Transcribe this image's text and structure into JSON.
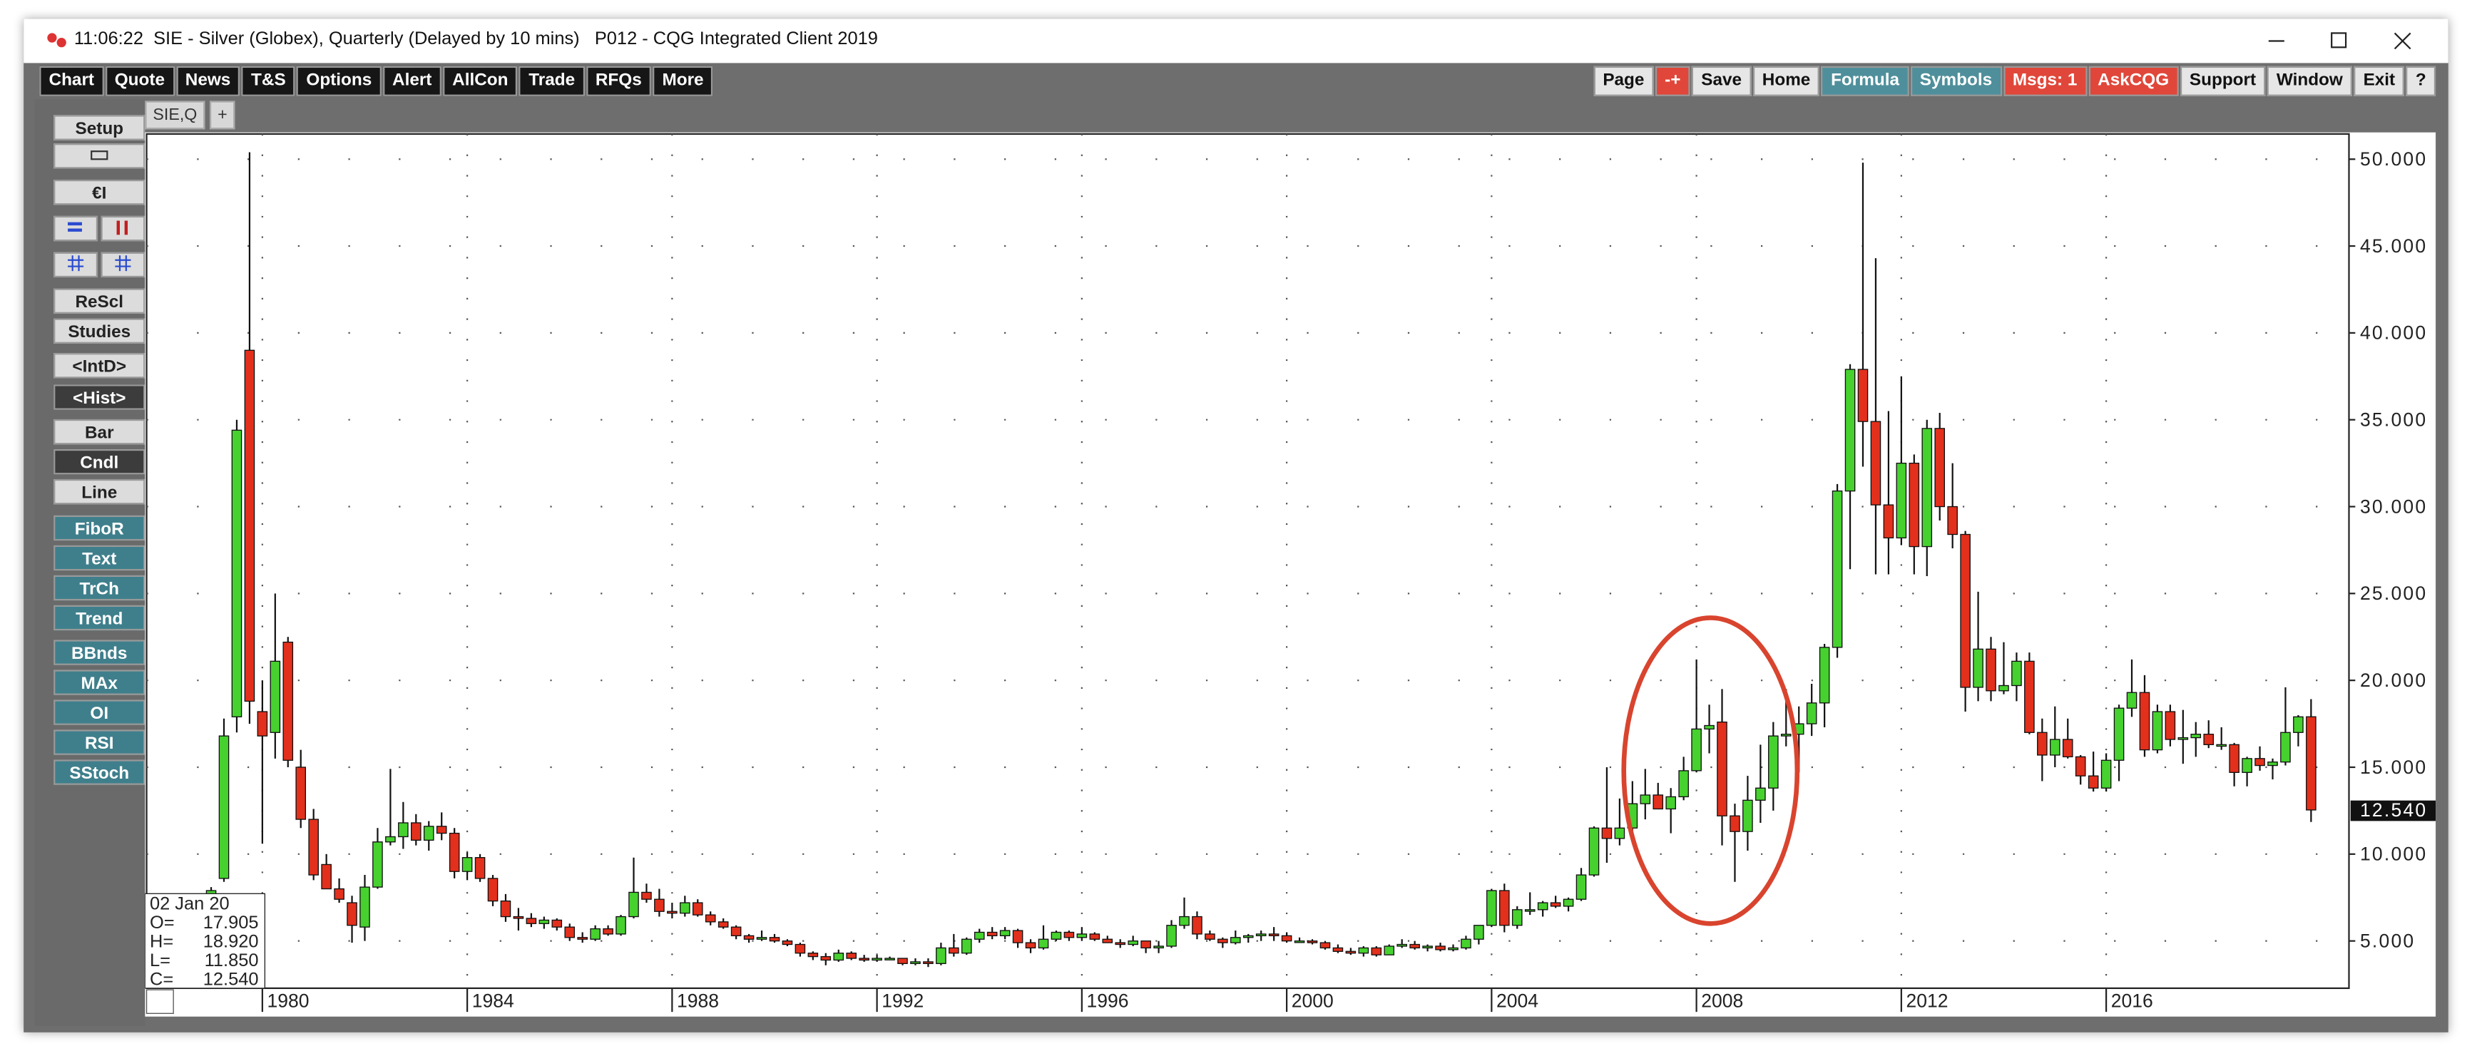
{
  "window": {
    "time": "11:06:22",
    "title": "SIE - Silver (Globex), Quarterly (Delayed by 10 mins)   P012 - CQG Integrated Client 2019"
  },
  "toolbar": {
    "left": [
      "Chart",
      "Quote",
      "News",
      "T&S",
      "Options",
      "Alert",
      "AllCon",
      "Trade",
      "RFQs",
      "More"
    ],
    "right": [
      {
        "label": "Page",
        "color": "#e6e6e6"
      },
      {
        "label": "-+",
        "color": "#e0473a"
      },
      {
        "label": "Save",
        "color": "#e6e6e6"
      },
      {
        "label": "Home",
        "color": "#e6e6e6"
      },
      {
        "label": "Formula",
        "color": "#4f8f9b"
      },
      {
        "label": "Symbols",
        "color": "#4f8f9b"
      },
      {
        "label": "Msgs: 1",
        "color": "#e0473a"
      },
      {
        "label": "AskCQG",
        "color": "#e0473a"
      },
      {
        "label": "Support",
        "color": "#e6e6e6"
      },
      {
        "label": "Window",
        "color": "#e6e6e6"
      },
      {
        "label": "Exit",
        "color": "#e6e6e6"
      },
      {
        "label": "?",
        "color": "#e6e6e6"
      }
    ]
  },
  "sidebar": [
    {
      "label": "Setup",
      "color": "#dcdcdc"
    },
    {
      "label": "€I",
      "color": "#dcdcdc"
    },
    {
      "label": "ReScl",
      "color": "#dcdcdc"
    },
    {
      "label": "Studies",
      "color": "#dcdcdc"
    },
    {
      "label": "<IntD>",
      "color": "#dcdcdc"
    },
    {
      "label": "<Hist>",
      "color": "#3c3c3c"
    },
    {
      "label": "Bar",
      "color": "#dcdcdc"
    },
    {
      "label": "Cndl",
      "color": "#3c3c3c"
    },
    {
      "label": "Line",
      "color": "#dcdcdc"
    },
    {
      "label": "FiboR",
      "color": "#3f7f8c"
    },
    {
      "label": "Text",
      "color": "#3f7f8c"
    },
    {
      "label": "TrCh",
      "color": "#3f7f8c"
    },
    {
      "label": "Trend",
      "color": "#3f7f8c"
    },
    {
      "label": "BBnds",
      "color": "#3f7f8c"
    },
    {
      "label": "MAx",
      "color": "#3f7f8c"
    },
    {
      "label": "OI",
      "color": "#3f7f8c"
    },
    {
      "label": "RSI",
      "color": "#3f7f8c"
    },
    {
      "label": "SStoch",
      "color": "#3f7f8c"
    }
  ],
  "tabs": [
    "SIE,Q",
    "+"
  ],
  "info_box": {
    "date": "02 Jan 20",
    "rows": [
      {
        "label": "O=",
        "value": "17.905"
      },
      {
        "label": "H=",
        "value": "18.920"
      },
      {
        "label": "L=",
        "value": "11.850"
      },
      {
        "label": "C=",
        "value": "12.540"
      }
    ]
  },
  "chart_data": {
    "type": "candlestick",
    "x": [
      1979,
      1979.25,
      1979.5,
      1979.75,
      1980,
      1980.25,
      1980.5,
      1980.75,
      1981,
      1981.25,
      1981.5,
      1981.75,
      1982,
      1982.25,
      1982.5,
      1982.75,
      1983,
      1983.25,
      1983.5,
      1983.75,
      1984,
      1984.25,
      1984.5,
      1984.75,
      1985,
      1985.25,
      1985.5,
      1985.75,
      1986,
      1986.25,
      1986.5,
      1986.75,
      1987,
      1987.25,
      1987.5,
      1987.75,
      1988,
      1988.25,
      1988.5,
      1988.75,
      1989,
      1989.25,
      1989.5,
      1989.75,
      1990,
      1990.25,
      1990.5,
      1990.75,
      1991,
      1991.25,
      1991.5,
      1991.75,
      1992,
      1992.25,
      1992.5,
      1992.75,
      1993,
      1993.25,
      1993.5,
      1993.75,
      1994,
      1994.25,
      1994.5,
      1994.75,
      1995,
      1995.25,
      1995.5,
      1995.75,
      1996,
      1996.25,
      1996.5,
      1996.75,
      1997,
      1997.25,
      1997.5,
      1997.75,
      1998,
      1998.25,
      1998.5,
      1998.75,
      1999,
      1999.25,
      1999.5,
      1999.75,
      2000,
      2000.25,
      2000.5,
      2000.75,
      2001,
      2001.25,
      2001.5,
      2001.75,
      2002,
      2002.25,
      2002.5,
      2002.75,
      2003,
      2003.25,
      2003.5,
      2003.75,
      2004,
      2004.25,
      2004.5,
      2004.75,
      2005,
      2005.25,
      2005.5,
      2005.75,
      2006,
      2006.25,
      2006.5,
      2006.75,
      2007,
      2007.25,
      2007.5,
      2007.75,
      2008,
      2008.25,
      2008.5,
      2008.75,
      2009,
      2009.25,
      2009.5,
      2009.75,
      2010,
      2010.25,
      2010.5,
      2010.75,
      2011,
      2011.25,
      2011.5,
      2011.75,
      2012,
      2012.25,
      2012.5,
      2012.75,
      2013,
      2013.25,
      2013.5,
      2013.75,
      2014,
      2014.25,
      2014.5,
      2014.75,
      2015,
      2015.25,
      2015.5,
      2015.75,
      2016,
      2016.25,
      2016.5,
      2016.75,
      2017,
      2017.25,
      2017.5,
      2017.75,
      2018,
      2018.25,
      2018.5,
      2018.75,
      2019,
      2019.25,
      2019.5,
      2019.75,
      2020
    ],
    "open": [
      6.0,
      8.6,
      17.9,
      39.0,
      18.2,
      17.0,
      22.2,
      15.0,
      12.0,
      9.4,
      8.0,
      7.2,
      5.8,
      8.1,
      10.7,
      11.0,
      11.8,
      10.8,
      11.6,
      11.2,
      9.0,
      9.8,
      8.6,
      7.3,
      6.4,
      6.3,
      6.0,
      6.2,
      5.8,
      5.2,
      5.1,
      5.7,
      5.4,
      6.4,
      7.8,
      7.4,
      6.7,
      6.6,
      7.2,
      6.5,
      6.1,
      5.8,
      5.3,
      5.1,
      5.2,
      5.0,
      4.8,
      4.3,
      4.1,
      3.9,
      4.3,
      4.0,
      3.9,
      4.0,
      4.0,
      3.7,
      3.8,
      3.7,
      4.6,
      4.3,
      5.1,
      5.5,
      5.3,
      5.6,
      4.9,
      4.6,
      5.1,
      5.5,
      5.2,
      5.4,
      5.1,
      4.9,
      4.8,
      5.0,
      4.6,
      4.7,
      5.9,
      6.4,
      5.4,
      5.1,
      4.9,
      5.2,
      5.3,
      5.4,
      5.3,
      5.0,
      5.0,
      4.9,
      4.6,
      4.4,
      4.3,
      4.6,
      4.2,
      4.7,
      4.8,
      4.6,
      4.7,
      4.5,
      4.6,
      5.1,
      5.9,
      7.9,
      5.9,
      6.8,
      6.8,
      7.2,
      7.0,
      7.4,
      8.8,
      11.5,
      10.9,
      11.5,
      12.9,
      13.4,
      12.6,
      13.3,
      14.8,
      17.2,
      17.6,
      12.2,
      11.3,
      13.1,
      13.8,
      16.8,
      16.9,
      17.5,
      18.7,
      21.9,
      30.9,
      37.9,
      34.9,
      30.1,
      28.2,
      32.5,
      27.7,
      34.5,
      30.0,
      28.4,
      19.6,
      21.8,
      19.4,
      19.7,
      21.1,
      17.0,
      15.7,
      16.6,
      15.6,
      14.5,
      13.8,
      15.4,
      18.4,
      19.3,
      16.0,
      18.2,
      16.6,
      16.7,
      16.9,
      16.3,
      16.3,
      14.7,
      15.5,
      15.1,
      15.3,
      17.0,
      17.905
    ],
    "high": [
      8.1,
      17.8,
      35.0,
      50.4,
      20.0,
      25.0,
      22.5,
      16.0,
      12.6,
      10.0,
      8.6,
      7.6,
      8.8,
      11.5,
      14.9,
      13.0,
      12.3,
      11.9,
      12.4,
      11.5,
      10.1,
      10.0,
      8.8,
      7.7,
      6.9,
      6.6,
      6.4,
      6.3,
      6.0,
      5.5,
      5.9,
      5.9,
      6.5,
      9.8,
      8.3,
      8.0,
      7.2,
      7.6,
      7.4,
      6.7,
      6.3,
      5.9,
      5.4,
      5.6,
      5.4,
      5.1,
      4.9,
      4.4,
      4.3,
      4.5,
      4.4,
      4.2,
      4.2,
      4.1,
      4.0,
      4.0,
      4.0,
      4.9,
      5.4,
      5.2,
      5.7,
      5.8,
      5.8,
      5.7,
      5.1,
      5.9,
      5.6,
      5.6,
      5.8,
      5.5,
      5.3,
      5.1,
      5.3,
      5.0,
      5.0,
      6.2,
      7.5,
      6.7,
      5.6,
      5.2,
      5.6,
      5.4,
      5.6,
      5.8,
      5.5,
      5.2,
      5.1,
      5.0,
      4.8,
      4.6,
      4.7,
      4.7,
      4.8,
      5.1,
      5.0,
      4.8,
      4.9,
      4.8,
      5.3,
      5.9,
      8.0,
      8.3,
      7.0,
      7.8,
      7.3,
      7.6,
      7.5,
      9.2,
      11.6,
      15.0,
      13.2,
      14.2,
      14.9,
      14.1,
      13.8,
      15.6,
      21.2,
      18.6,
      19.5,
      12.9,
      14.5,
      16.3,
      17.6,
      19.5,
      18.5,
      19.8,
      22.1,
      31.3,
      38.2,
      49.8,
      44.3,
      35.5,
      37.5,
      33.0,
      35.0,
      35.4,
      32.5,
      28.6,
      25.1,
      22.5,
      22.2,
      21.6,
      21.6,
      17.8,
      18.5,
      17.8,
      15.7,
      15.9,
      15.8,
      18.6,
      21.2,
      20.3,
      18.6,
      18.6,
      18.3,
      17.6,
      17.7,
      17.3,
      16.4,
      15.6,
      16.2,
      15.5,
      19.6,
      18.0,
      18.92
    ],
    "low": [
      5.9,
      8.4,
      17.0,
      17.5,
      10.6,
      15.5,
      15.0,
      11.5,
      8.5,
      8.3,
      7.2,
      4.9,
      5.0,
      8.0,
      10.5,
      10.3,
      10.5,
      10.2,
      10.8,
      8.6,
      8.5,
      8.4,
      7.0,
      6.1,
      5.6,
      5.8,
      5.7,
      5.6,
      5.0,
      4.9,
      5.0,
      5.3,
      5.3,
      6.3,
      7.2,
      6.4,
      6.3,
      6.4,
      6.4,
      5.9,
      5.7,
      5.1,
      4.9,
      5.0,
      4.9,
      4.7,
      4.1,
      3.9,
      3.6,
      3.8,
      3.9,
      3.8,
      3.8,
      3.9,
      3.6,
      3.6,
      3.5,
      3.6,
      4.1,
      4.2,
      4.9,
      5.1,
      5.1,
      4.6,
      4.3,
      4.5,
      5.0,
      5.0,
      5.0,
      5.0,
      4.9,
      4.6,
      4.7,
      4.3,
      4.3,
      4.6,
      5.7,
      5.1,
      5.0,
      4.6,
      4.8,
      4.9,
      5.0,
      5.0,
      4.9,
      4.9,
      4.8,
      4.5,
      4.3,
      4.2,
      4.1,
      4.1,
      4.2,
      4.6,
      4.5,
      4.4,
      4.4,
      4.4,
      4.5,
      4.8,
      5.8,
      5.5,
      5.7,
      6.5,
      6.4,
      6.9,
      6.7,
      7.3,
      8.7,
      9.5,
      10.5,
      10.9,
      12.0,
      12.6,
      11.2,
      13.1,
      14.7,
      15.8,
      10.5,
      8.4,
      10.2,
      11.8,
      12.5,
      16.2,
      14.7,
      16.8,
      17.3,
      21.3,
      26.4,
      32.3,
      26.1,
      26.1,
      27.8,
      26.1,
      26.0,
      29.2,
      27.6,
      18.2,
      18.8,
      18.8,
      19.2,
      18.8,
      16.9,
      14.2,
      15.0,
      15.5,
      14.0,
      13.6,
      13.6,
      14.2,
      17.9,
      15.6,
      15.8,
      16.2,
      15.2,
      15.6,
      16.1,
      16.0,
      13.9,
      13.9,
      14.8,
      14.3,
      15.1,
      16.2,
      11.85
    ],
    "close": [
      7.9,
      16.8,
      34.4,
      18.8,
      16.8,
      21.1,
      15.4,
      12.0,
      8.8,
      8.0,
      7.4,
      5.9,
      8.1,
      10.7,
      11.0,
      11.8,
      10.8,
      11.6,
      11.2,
      9.0,
      9.8,
      8.6,
      7.3,
      6.4,
      6.3,
      6.0,
      6.2,
      5.8,
      5.2,
      5.1,
      5.7,
      5.4,
      6.4,
      7.8,
      7.4,
      6.7,
      6.6,
      7.2,
      6.5,
      6.1,
      5.8,
      5.3,
      5.1,
      5.2,
      5.0,
      4.8,
      4.3,
      4.1,
      3.9,
      4.3,
      4.0,
      3.9,
      4.0,
      4.0,
      3.7,
      3.8,
      3.7,
      4.6,
      4.3,
      5.1,
      5.5,
      5.3,
      5.6,
      4.9,
      4.6,
      5.1,
      5.5,
      5.2,
      5.4,
      5.1,
      4.9,
      4.8,
      5.0,
      4.6,
      4.7,
      5.9,
      6.4,
      5.4,
      5.1,
      4.9,
      5.2,
      5.3,
      5.4,
      5.3,
      5.0,
      5.0,
      4.9,
      4.6,
      4.4,
      4.3,
      4.6,
      4.2,
      4.7,
      4.8,
      4.6,
      4.7,
      4.5,
      4.6,
      5.1,
      5.9,
      7.9,
      5.9,
      6.8,
      6.8,
      7.2,
      7.0,
      7.4,
      8.8,
      11.5,
      10.9,
      11.5,
      12.9,
      13.4,
      12.6,
      13.3,
      14.8,
      17.2,
      17.4,
      12.2,
      11.3,
      13.1,
      13.8,
      16.8,
      16.9,
      17.5,
      18.7,
      21.9,
      30.9,
      37.9,
      34.9,
      30.1,
      28.2,
      32.5,
      27.7,
      34.5,
      30.0,
      28.4,
      19.6,
      21.8,
      19.4,
      19.7,
      21.1,
      17.0,
      15.7,
      16.6,
      15.6,
      14.5,
      13.8,
      15.4,
      18.4,
      19.3,
      16.0,
      18.2,
      16.6,
      16.7,
      16.9,
      16.3,
      16.3,
      14.7,
      15.5,
      15.1,
      15.3,
      17.0,
      17.9,
      12.54
    ],
    "up_color": "#46d12f",
    "down_color": "#e2301c",
    "xlim": [
      1977.74,
      2020.74
    ],
    "xticks": [
      1980,
      1984,
      1988,
      1992,
      1996,
      2000,
      2004,
      2008,
      2012,
      2016
    ],
    "ylim": [
      2.28,
      51.45
    ],
    "yticks": [
      {
        "value": 5,
        "label": "5.000"
      },
      {
        "value": 10,
        "label": "10.000"
      },
      {
        "value": 15,
        "label": "15.000"
      },
      {
        "value": 20,
        "label": "20.000"
      },
      {
        "value": 25,
        "label": "25.000"
      },
      {
        "value": 30,
        "label": "30.000"
      },
      {
        "value": 35,
        "label": "35.000"
      },
      {
        "value": 40,
        "label": "40.000"
      },
      {
        "value": 45,
        "label": "45.000"
      },
      {
        "value": 50,
        "label": "50.000"
      }
    ],
    "last_price": {
      "value": 12.54,
      "label": "12.540"
    },
    "grid": true
  }
}
